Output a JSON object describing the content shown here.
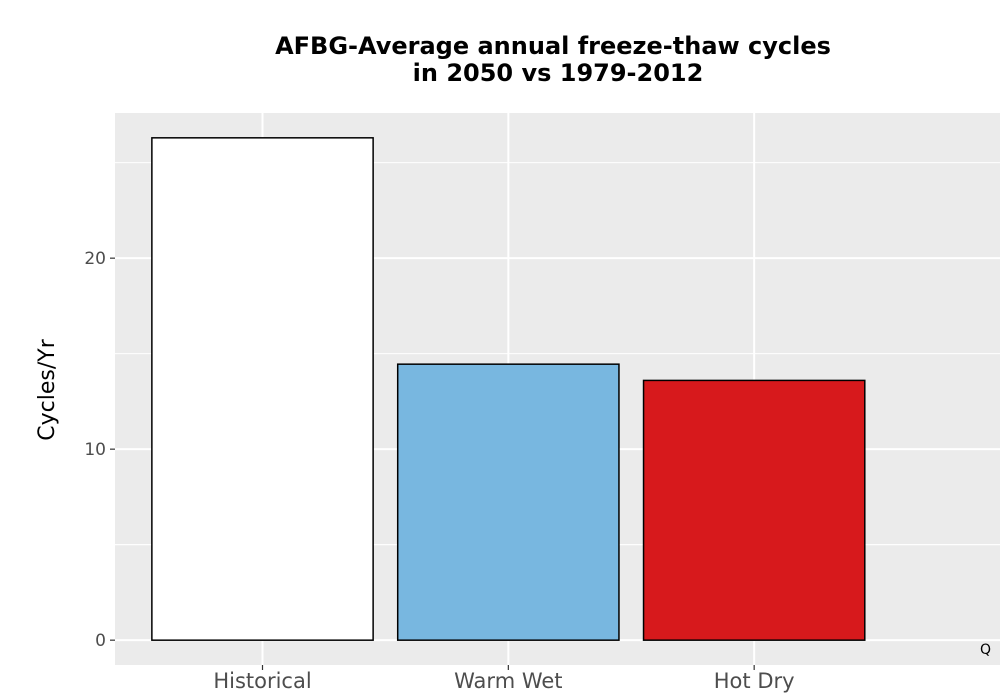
{
  "chart_data": {
    "type": "bar",
    "title_lines": [
      "AFBG-Average annual freeze-thaw cycles",
      "in 2050 vs 1979-2012"
    ],
    "xlabel": "",
    "ylabel": "Cycles/Yr",
    "categories": [
      "Historical",
      "Warm Wet",
      "Hot Dry"
    ],
    "values": [
      26.3,
      14.45,
      13.6
    ],
    "colors": [
      "#ffffff",
      "#78b7e0",
      "#d7191c"
    ],
    "bar_outline_color": "#000000",
    "panel_background": "#ebebeb",
    "grid": true,
    "ylim": [
      -1.3,
      27.6
    ],
    "yticks": [
      0,
      10,
      20
    ],
    "ytick_labels": [
      "0",
      "10",
      "20"
    ],
    "legend": "none"
  },
  "corner_mark": "Q"
}
